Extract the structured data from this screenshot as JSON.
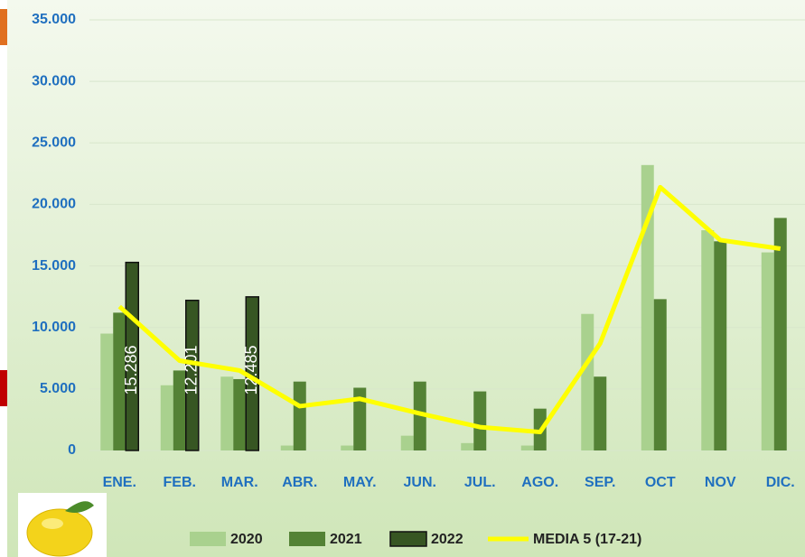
{
  "chart_data": {
    "type": "bar",
    "categories": [
      "ENE.",
      "FEB.",
      "MAR.",
      "ABR.",
      "MAY.",
      "JUN.",
      "JUL.",
      "AGO.",
      "SEP.",
      "OCT",
      "NOV",
      "DIC."
    ],
    "series": [
      {
        "name": "2020",
        "color": "#a9d18e",
        "type": "bar",
        "values": [
          9500,
          5300,
          6000,
          400,
          400,
          1200,
          600,
          400,
          11100,
          23200,
          17900,
          16100
        ]
      },
      {
        "name": "2021",
        "color": "#548235",
        "type": "bar",
        "values": [
          11200,
          6500,
          5800,
          5600,
          5100,
          5600,
          4800,
          3400,
          6000,
          12300,
          17000,
          18900
        ]
      },
      {
        "name": "2022",
        "color": "#375623",
        "type": "bar",
        "values": [
          15286,
          12201,
          12485,
          null,
          null,
          null,
          null,
          null,
          null,
          null,
          null,
          null
        ],
        "value_labels": [
          "15.286",
          "12.201",
          "12.485",
          null,
          null,
          null,
          null,
          null,
          null,
          null,
          null,
          null
        ]
      },
      {
        "name": "MEDIA 5 (17-21)",
        "color": "#ffff00",
        "type": "line",
        "values": [
          11700,
          7300,
          6500,
          3600,
          4200,
          3000,
          1900,
          1500,
          8700,
          21400,
          17100,
          16400
        ]
      }
    ],
    "ylim": [
      0,
      35000
    ],
    "yticks": [
      0,
      {
        "value": 5000,
        "label": "5.000"
      },
      {
        "value": 10000,
        "label": "10.000"
      },
      {
        "value": 15000,
        "label": "15.000"
      },
      {
        "value": 20000,
        "label": "20.000"
      },
      {
        "value": 25000,
        "label": "25.000"
      },
      {
        "value": 30000,
        "label": "30.000"
      },
      {
        "value": 35000,
        "label": "35.000"
      }
    ],
    "grid": true,
    "legend": "bottom"
  }
}
